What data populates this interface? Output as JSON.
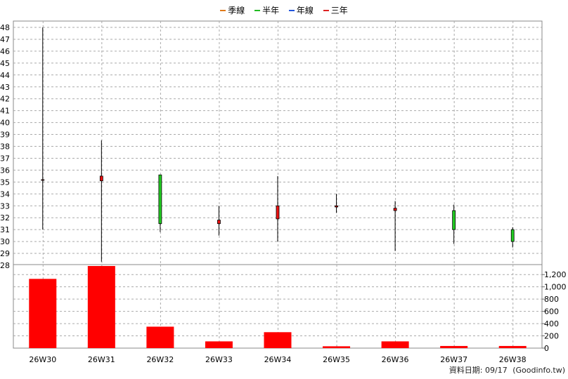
{
  "legend": [
    {
      "label": "季線",
      "color": "#e07b1a"
    },
    {
      "label": "半年",
      "color": "#22bb22"
    },
    {
      "label": "年線",
      "color": "#2255dd"
    },
    {
      "label": "三年",
      "color": "#dd2222"
    }
  ],
  "footer": {
    "date_label": "資料日期: 09/17",
    "source": "(Goodinfo.tw)"
  },
  "chart_data": [
    {
      "type": "candlestick",
      "categories": [
        "26W30",
        "26W31",
        "26W32",
        "26W33",
        "26W34",
        "26W35",
        "26W36",
        "26W37",
        "26W38"
      ],
      "ohlc": [
        {
          "open": 35.2,
          "high": 48.0,
          "low": 31.0,
          "close": 35.2
        },
        {
          "open": 35.1,
          "high": 38.5,
          "low": 28.3,
          "close": 35.5
        },
        {
          "open": 35.6,
          "high": 35.6,
          "low": 30.8,
          "close": 31.5
        },
        {
          "open": 31.5,
          "high": 33.0,
          "low": 30.5,
          "close": 31.8
        },
        {
          "open": 31.9,
          "high": 35.5,
          "low": 30.0,
          "close": 33.0
        },
        {
          "open": 32.9,
          "high": 34.0,
          "low": 32.4,
          "close": 33.0
        },
        {
          "open": 32.6,
          "high": 33.4,
          "low": 29.2,
          "close": 32.8
        },
        {
          "open": 32.6,
          "high": 33.1,
          "low": 29.8,
          "close": 31.0
        },
        {
          "open": 31.0,
          "high": 31.2,
          "low": 29.5,
          "close": 30.0
        }
      ],
      "ylim": [
        28,
        48.5
      ],
      "yticks": [
        28,
        29,
        30,
        31,
        32,
        33,
        34,
        35,
        36,
        37,
        38,
        39,
        40,
        41,
        42,
        43,
        44,
        45,
        46,
        47,
        48
      ],
      "up_color": "#ee1111",
      "down_color": "#22cc22",
      "grid": true
    },
    {
      "type": "bar",
      "categories": [
        "26W30",
        "26W31",
        "26W32",
        "26W33",
        "26W34",
        "26W35",
        "26W36",
        "26W37",
        "26W38"
      ],
      "values": [
        1130,
        1340,
        350,
        110,
        260,
        30,
        110,
        35,
        35
      ],
      "ylim": [
        0,
        1340
      ],
      "yticks": [
        0,
        200,
        400,
        600,
        800,
        1000,
        1200
      ],
      "ytick_labels": [
        "0",
        "200",
        "400",
        "600",
        "800",
        "1,000",
        "1,200"
      ],
      "color": "#ff0000",
      "grid": true
    }
  ]
}
